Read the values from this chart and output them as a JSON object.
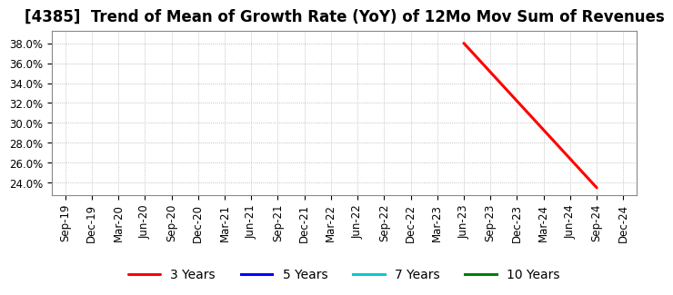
{
  "title": "[4385]  Trend of Mean of Growth Rate (YoY) of 12Mo Mov Sum of Revenues",
  "background_color": "#ffffff",
  "grid_color": "#b0b0b0",
  "ylim": [
    0.228,
    0.392
  ],
  "yticks": [
    0.24,
    0.26,
    0.28,
    0.3,
    0.32,
    0.34,
    0.36,
    0.38
  ],
  "series": {
    "3 Years": {
      "color": "#ff0000",
      "x": [
        "Jun-23",
        "Sep-24"
      ],
      "y": [
        0.38,
        0.235
      ]
    },
    "5 Years": {
      "color": "#0000ff",
      "x": [],
      "y": []
    },
    "7 Years": {
      "color": "#00cccc",
      "x": [],
      "y": []
    },
    "10 Years": {
      "color": "#008000",
      "x": [],
      "y": []
    }
  },
  "xtick_labels": [
    "Sep-19",
    "Dec-19",
    "Mar-20",
    "Jun-20",
    "Sep-20",
    "Dec-20",
    "Mar-21",
    "Jun-21",
    "Sep-21",
    "Dec-21",
    "Mar-22",
    "Jun-22",
    "Sep-22",
    "Dec-22",
    "Mar-23",
    "Jun-23",
    "Sep-23",
    "Dec-23",
    "Mar-24",
    "Jun-24",
    "Sep-24",
    "Dec-24"
  ],
  "legend_entries": [
    "3 Years",
    "5 Years",
    "7 Years",
    "10 Years"
  ],
  "legend_colors": [
    "#ff0000",
    "#0000ff",
    "#00cccc",
    "#008000"
  ],
  "title_fontsize": 12,
  "tick_fontsize": 8.5,
  "legend_fontsize": 10,
  "line_width": 2.2
}
